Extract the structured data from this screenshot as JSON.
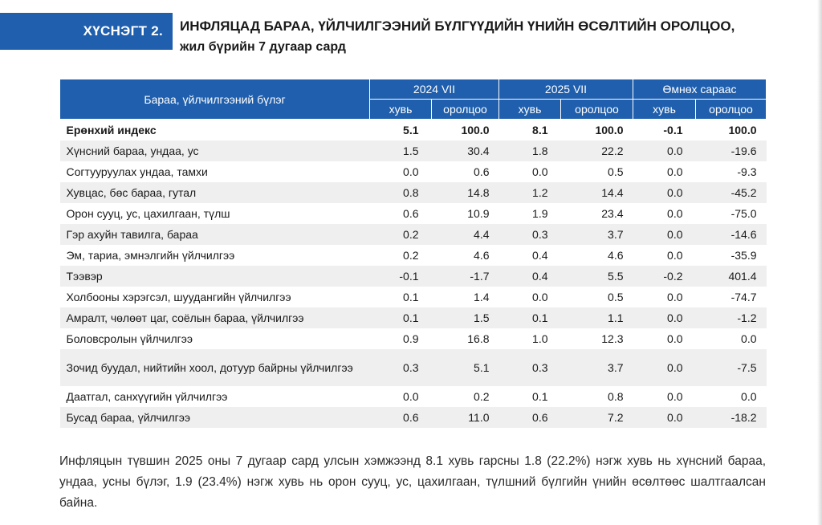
{
  "title": {
    "tag": "ХҮСНЭГТ 2.",
    "line1": "ИНФЛЯЦАД БАРАА, ҮЙЛЧИЛГЭЭНИЙ БҮЛГҮҮДИЙН ҮНИЙН ӨСӨЛТИЙН ОРОЛЦОО,",
    "line2": "жил бүрийн 7 дугаар сард"
  },
  "table": {
    "category_header": "Бараа, үйлчилгээний бүлэг",
    "groups": [
      "2024 VII",
      "2025 VII",
      "Өмнөх сараас"
    ],
    "subheaders": [
      "хувь",
      "оролцоо",
      "хувь",
      "оролцоо",
      "хувь",
      "оролцоо"
    ],
    "rows": [
      {
        "name": "Ерөнхий индекс",
        "v": [
          "5.1",
          "100.0",
          "8.1",
          "100.0",
          "-0.1",
          "100.0"
        ]
      },
      {
        "name": "Хүнсний бараа, ундаа, ус",
        "v": [
          "1.5",
          "30.4",
          "1.8",
          "22.2",
          "0.0",
          "-19.6"
        ]
      },
      {
        "name": "Согтууруулах ундаа, тамхи",
        "v": [
          "0.0",
          "0.6",
          "0.0",
          "0.5",
          "0.0",
          "-9.3"
        ]
      },
      {
        "name": "Хувцас, бөс бараа, гутал",
        "v": [
          "0.8",
          "14.8",
          "1.2",
          "14.4",
          "0.0",
          "-45.2"
        ]
      },
      {
        "name": "Орон сууц, ус, цахилгаан, түлш",
        "v": [
          "0.6",
          "10.9",
          "1.9",
          "23.4",
          "0.0",
          "-75.0"
        ]
      },
      {
        "name": "Гэр ахуйн тавилга, бараа",
        "v": [
          "0.2",
          "4.4",
          "0.3",
          "3.7",
          "0.0",
          "-14.6"
        ]
      },
      {
        "name": "Эм, тариа, эмнэлгийн үйлчилгээ",
        "v": [
          "0.2",
          "4.6",
          "0.4",
          "4.6",
          "0.0",
          "-35.9"
        ]
      },
      {
        "name": "Тээвэр",
        "v": [
          "-0.1",
          "-1.7",
          "0.4",
          "5.5",
          "-0.2",
          "401.4"
        ]
      },
      {
        "name": "Холбооны хэрэгсэл, шуудангийн үйлчилгээ",
        "v": [
          "0.1",
          "1.4",
          "0.0",
          "0.5",
          "0.0",
          "-74.7"
        ]
      },
      {
        "name": "Амралт, чөлөөт цаг, соёлын бараа, үйлчилгээ",
        "v": [
          "0.1",
          "1.5",
          "0.1",
          "1.1",
          "0.0",
          "-1.2"
        ]
      },
      {
        "name": "Боловсролын үйлчилгээ",
        "v": [
          "0.9",
          "16.8",
          "1.0",
          "12.3",
          "0.0",
          "0.0"
        ]
      },
      {
        "name": "Зочид буудал, нийтийн хоол, дотуур байрны үйлчилгээ",
        "v": [
          "0.3",
          "5.1",
          "0.3",
          "3.7",
          "0.0",
          "-7.5"
        ]
      },
      {
        "name": "Даатгал, санхүүгийн үйлчилгээ",
        "v": [
          "0.0",
          "0.2",
          "0.1",
          "0.8",
          "0.0",
          "0.0"
        ]
      },
      {
        "name": "Бусад бараа, үйлчилгээ",
        "v": [
          "0.6",
          "11.0",
          "0.6",
          "7.2",
          "0.0",
          "-18.2"
        ]
      }
    ]
  },
  "paragraph": "Инфляцын түвшин 2025 оны 7 дугаар сард улсын хэмжээнд 8.1 хувь гарсны 1.8 (22.2%) нэгж хувь нь хүнсний бараа, ундаа, усны бүлэг, 1.9 (23.4%) нэгж хувь нь орон сууц, ус, цахилгаан, түлшний бүлгийн үнийн өсөлтөөс шалтгаалсан байна."
}
